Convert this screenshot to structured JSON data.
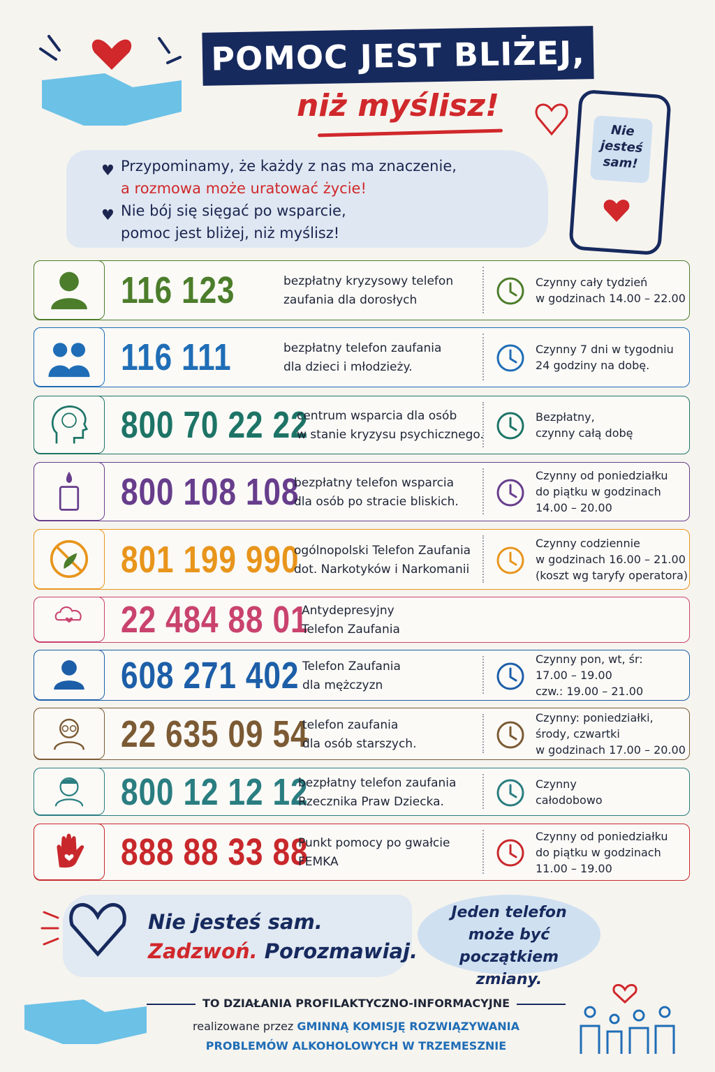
{
  "header": {
    "title_line1": "POMOC JEST BLIŻEJ,",
    "title_line2": "niż myślisz!"
  },
  "phone_bubble": [
    "Nie",
    "jesteś",
    "sam!"
  ],
  "intro": [
    [
      "Przypominamy, że każdy z nas ma znaczenie,",
      "a rozmowa może uratować życie!"
    ],
    [
      "Nie bój się sięgać po wsparcie,",
      "pomoc jest bliżej, niż myślisz!"
    ]
  ],
  "helplines": [
    {
      "number": "116 123",
      "color": "#4c7d2b",
      "description": [
        "bezpłatny kryzysowy telefon",
        "zaufania dla dorosłych"
      ],
      "hours": [
        "Czynny cały tydzień",
        "w godzinach 14.00 – 22.00"
      ]
    },
    {
      "number": "116 111",
      "color": "#1f6db6",
      "description": [
        "bezpłatny telefon zaufania",
        "dla dzieci i młodzieży."
      ],
      "hours": [
        "Czynny 7 dni w tygodniu",
        "24 godziny na dobę."
      ]
    },
    {
      "number": "800 70 22 22",
      "color": "#1d7466",
      "description": [
        "centrum wsparcia dla osób",
        "w stanie kryzysu psychicznego."
      ],
      "hours": [
        "Bezpłatny,",
        "czynny całą dobę"
      ]
    },
    {
      "number": "800 108 108",
      "color": "#673d8c",
      "description": [
        "bezpłatny telefon wsparcia",
        "dla osób po stracie bliskich."
      ],
      "hours": [
        "Czynny od poniedziałku",
        "do piątku w godzinach",
        "14.00 – 20.00"
      ]
    },
    {
      "number": "801 199 990",
      "color": "#e8951c",
      "description": [
        "ogólnopolski Telefon Zaufania",
        "dot. Narkotyków i Narkomanii"
      ],
      "hours": [
        "Czynny codziennie",
        "w godzinach 16.00 – 21.00",
        "(koszt wg taryfy operatora)"
      ]
    },
    {
      "number": "22 484 88 01",
      "color": "#c9436d",
      "description": [
        "Antydepresyjny",
        "Telefon Zaufania"
      ]
    },
    {
      "number": "608 271 402",
      "color": "#1d5ea8",
      "description": [
        "Telefon Zaufania",
        "dla mężczyzn"
      ],
      "hours": [
        "Czynny pon, wt, śr:",
        "17.00 – 19.00",
        "czw.: 19.00 – 21.00"
      ]
    },
    {
      "number": "22 635 09 54",
      "color": "#7b5a34",
      "description": [
        "telefon zaufania",
        "dla osób starszych."
      ],
      "hours": [
        "Czynny: poniedziałki,",
        "środy, czwartki",
        "w godzinach 17.00 – 20.00"
      ]
    },
    {
      "number": "800 12 12 12",
      "color": "#2a7d80",
      "description": [
        "bezpłatny telefon zaufania",
        "Rzecznika Praw Dziecka."
      ],
      "hours": [
        "Czynny",
        "całodobowo"
      ]
    },
    {
      "number": "888 88 33 88",
      "color": "#c8282b",
      "description": [
        "Punkt pomocy po gwałcie",
        "FEMKA"
      ],
      "hours": [
        "Czynny od poniedziałku",
        "do piątku w godzinach",
        "11.00 – 19.00"
      ]
    }
  ],
  "slogan": {
    "line1": "Nie jesteś sam.",
    "call": "Zadzwoń.",
    "talk": "Porozmawiaj."
  },
  "speech_bubble": [
    "Jeden telefon",
    "może być początkiem",
    "zmiany."
  ],
  "footer": {
    "heading": "TO DZIAŁANIA PROFILAKTYCZNO-INFORMACYJNE",
    "by": "realizowane przez",
    "org_line1": "GMINNĄ KOMISJĘ ROZWIĄZYWANIA",
    "org_line2": "PROBLEMÓW ALKOHOLOWYCH W TRZEMESZNIE"
  }
}
